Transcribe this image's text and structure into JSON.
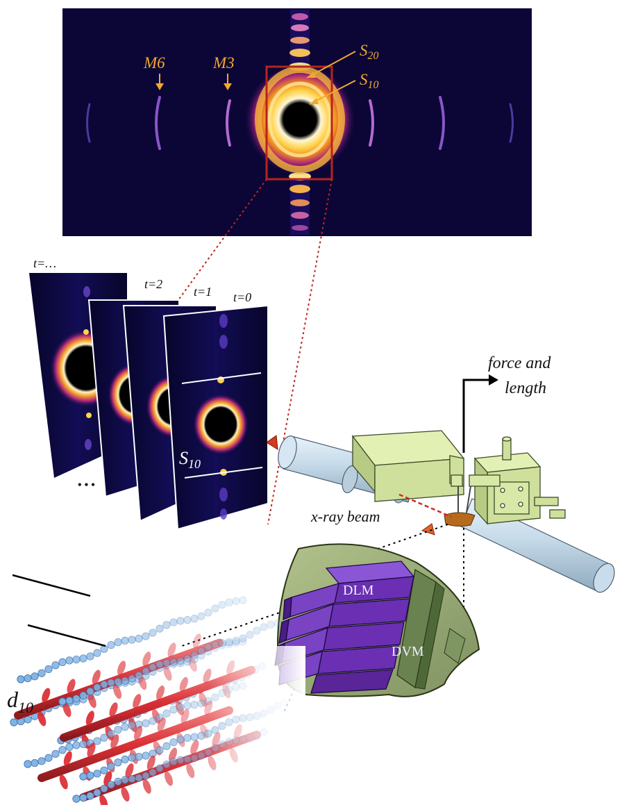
{
  "top_pattern": {
    "m6": "M6",
    "m3": "M3",
    "s20_main": "S",
    "s20_sub": "20",
    "s10_main": "S",
    "s10_sub": "10",
    "label_color": "#f2a92b",
    "box_color": "#b8231b"
  },
  "frames": {
    "t_dots": "t=…",
    "t2": "t=2",
    "t1": "t=1",
    "t0": "t=0",
    "ellipsis": "• • •",
    "s10_main": "S",
    "s10_sub": "10"
  },
  "apparatus": {
    "force_line1": "force and",
    "force_line2": "length",
    "xray": "x-ray beam"
  },
  "muscle": {
    "dlm": "DLM",
    "dvm": "DVM",
    "shell_color": "#9cae78",
    "block_color": "#6a2fb2"
  },
  "filaments": {
    "d_main": "d",
    "d_sub": "10",
    "myosin_color": "#d9262c",
    "actin_color": "#7fb2e5"
  }
}
